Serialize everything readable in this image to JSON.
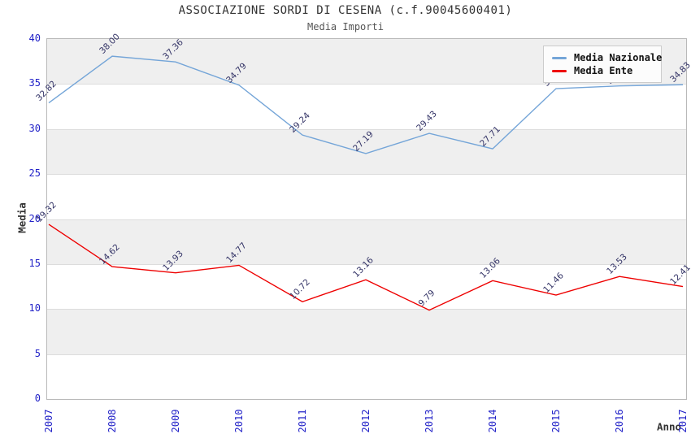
{
  "title": "ASSOCIAZIONE SORDI DI CESENA (c.f.90045600401)",
  "subtitle": "Media Importi",
  "colors": {
    "nazionale_line": "#74a5d8",
    "ente_line": "#ee0000",
    "tick_label": "#2222c8",
    "data_label": "#333366",
    "band_gray": "#efefef",
    "band_white": "#ffffff",
    "legend_bg": "#fcfcfc"
  },
  "chart_data": {
    "type": "line",
    "x": [
      "2007",
      "2008",
      "2009",
      "2010",
      "2011",
      "2012",
      "2013",
      "2014",
      "2015",
      "2016",
      "2017"
    ],
    "series": [
      {
        "name": "Media Nazionale",
        "color": "#74a5d8",
        "values": [
          32.82,
          38.0,
          37.36,
          34.79,
          29.24,
          27.19,
          29.43,
          27.71,
          34.4,
          34.7,
          34.83
        ]
      },
      {
        "name": "Media Ente",
        "color": "#ee0000",
        "values": [
          19.32,
          14.62,
          13.93,
          14.77,
          10.72,
          13.16,
          9.79,
          13.06,
          11.46,
          13.53,
          12.41
        ]
      }
    ],
    "xlabel": "Anno",
    "ylabel": "Media",
    "ylim": [
      0,
      40
    ],
    "yticks": [
      0,
      5,
      10,
      15,
      20,
      25,
      30,
      35,
      40
    ],
    "grid": true,
    "bands_alternating": true,
    "legend_position": "top-right",
    "note": "Media Nazionale values for 2015 and 2016 are estimated from line position; their labels are occluded by the legend box"
  }
}
